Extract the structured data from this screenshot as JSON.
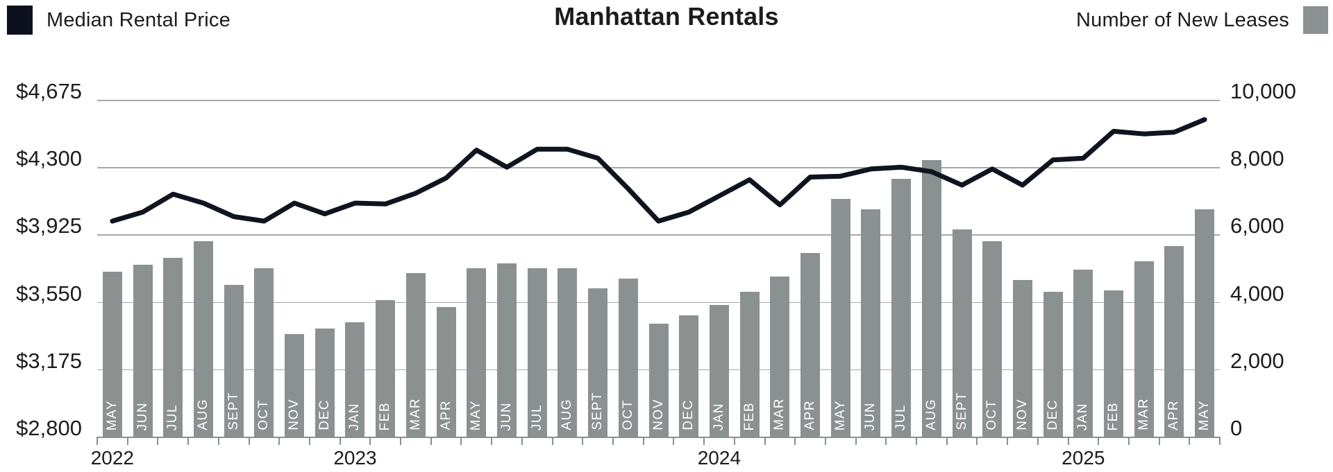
{
  "header": {
    "title": "Manhattan Rentals",
    "legend_left": {
      "label": "Median Rental Price",
      "swatch_color": "#0c111d"
    },
    "legend_right": {
      "label": "Number of New Leases",
      "swatch_color": "#8b9190"
    }
  },
  "colors": {
    "background": "#ffffff",
    "line": "#10141f",
    "bar": "#8b9190",
    "gridline": "#a4a8a8",
    "axis": "#8a8f8f",
    "text": "#1c1c1c",
    "bar_label_text": "#ffffff"
  },
  "chart_data": {
    "type": "bar+line combo",
    "title": "Manhattan Rentals",
    "grid": true,
    "legend_position": "top-left (line) and top-right (bars)",
    "categories": [
      "MAY",
      "JUN",
      "JUL",
      "AUG",
      "SEPT",
      "OCT",
      "NOV",
      "DEC",
      "JAN",
      "FEB",
      "MAR",
      "APR",
      "MAY",
      "JUN",
      "JUL",
      "AUG",
      "SEPT",
      "OCT",
      "NOV",
      "DEC",
      "JAN",
      "FEB",
      "MAR",
      "APR",
      "MAY",
      "JUN",
      "JUL",
      "AUG",
      "SEPT",
      "OCT",
      "NOV",
      "DEC",
      "JAN",
      "FEB",
      "MAR",
      "APR",
      "MAY"
    ],
    "year_markers": [
      {
        "label": "2022",
        "slot_index": 0
      },
      {
        "label": "2023",
        "slot_index": 8
      },
      {
        "label": "2024",
        "slot_index": 20
      },
      {
        "label": "2025",
        "slot_index": 32
      }
    ],
    "left_axis": {
      "series": "Median Rental Price",
      "unit": "USD per month",
      "min": 2800,
      "max": 4675,
      "tick_values": [
        4675,
        4300,
        3925,
        3550,
        3175,
        2800
      ],
      "tick_labels": [
        "$4,675",
        "$4,300",
        "$3,925",
        "$3,550",
        "$3,175",
        "$2,800"
      ]
    },
    "right_axis": {
      "series": "Number of New Leases",
      "unit": "leases",
      "min": 0,
      "max": 10000,
      "tick_values": [
        10000,
        8000,
        6000,
        4000,
        2000,
        0
      ],
      "tick_labels": [
        "10,000",
        "8,000",
        "6,000",
        "4,000",
        "2,000",
        "0"
      ]
    },
    "series": [
      {
        "name": "Median Rental Price",
        "type": "line",
        "axis": "left",
        "color": "#10141f",
        "values": [
          4000,
          4050,
          4150,
          4100,
          4025,
          4000,
          4100,
          4040,
          4100,
          4095,
          4155,
          4240,
          4395,
          4300,
          4400,
          4400,
          4350,
          4180,
          4000,
          4050,
          4140,
          4230,
          4090,
          4245,
          4250,
          4290,
          4300,
          4275,
          4200,
          4290,
          4200,
          4340,
          4350,
          4500,
          4485,
          4495,
          4565
        ]
      },
      {
        "name": "Number of New Leases",
        "type": "bar",
        "axis": "right",
        "color": "#8b9190",
        "values": [
          4900,
          5100,
          5300,
          5800,
          4500,
          5000,
          3050,
          3200,
          3400,
          4050,
          4850,
          3850,
          5000,
          5150,
          5000,
          5000,
          4400,
          4700,
          3350,
          3600,
          3900,
          4300,
          4750,
          5450,
          7050,
          6750,
          7650,
          8200,
          6150,
          5800,
          4650,
          4300,
          4950,
          4350,
          5200,
          5650,
          6750
        ]
      }
    ]
  }
}
